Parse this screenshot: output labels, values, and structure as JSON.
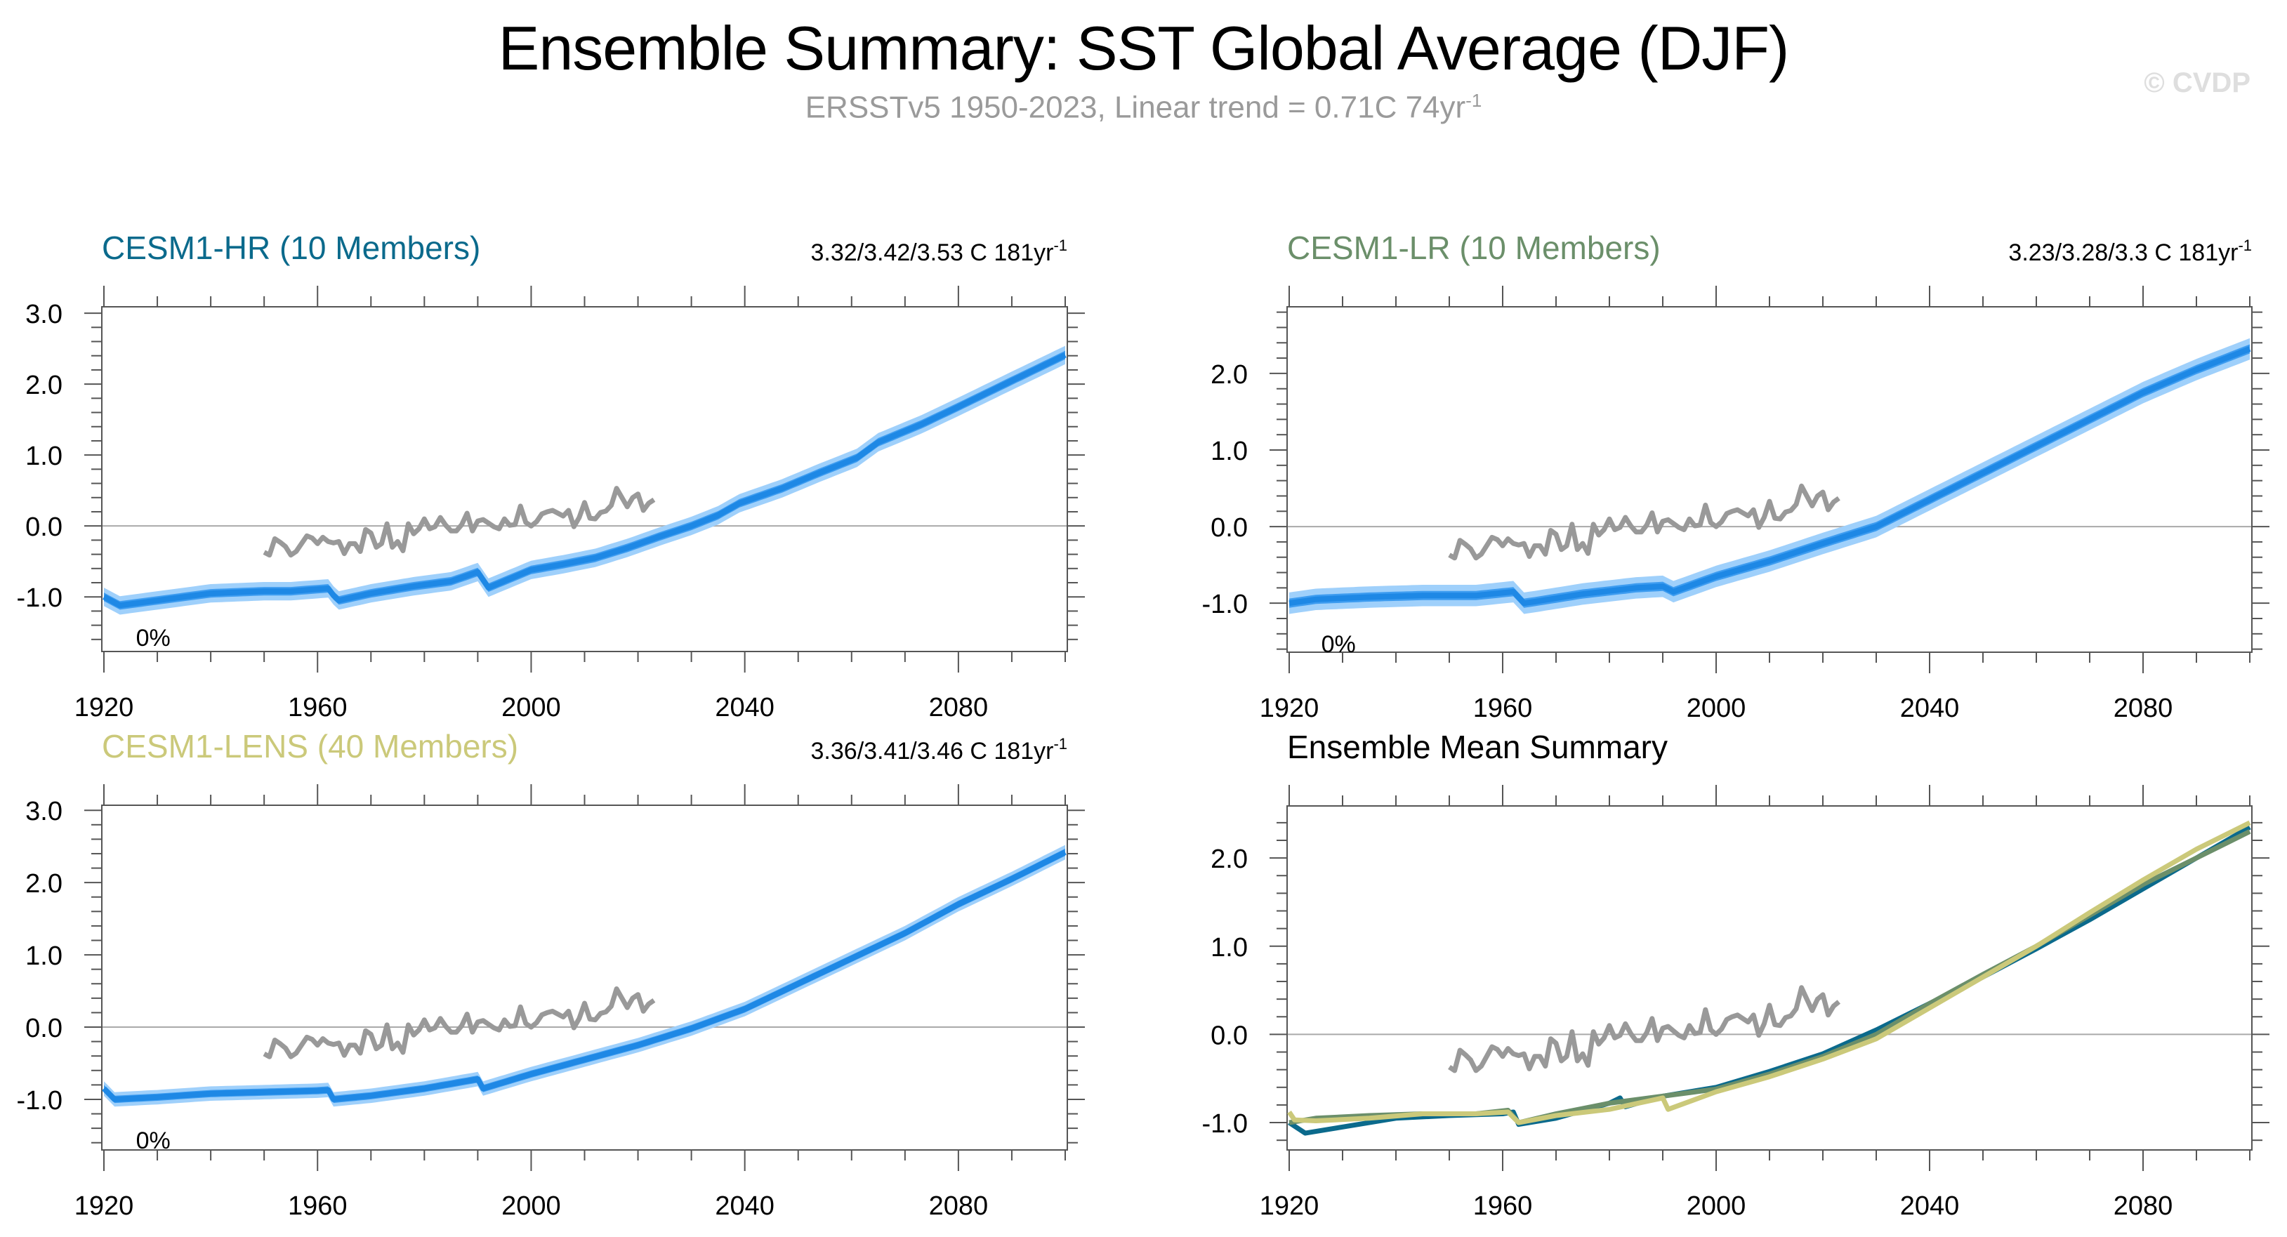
{
  "header": {
    "title": "Ensemble Summary: SST Global Average (DJF)",
    "subtitle_main": "ERSSTv5 1950-2023, Linear trend = 0.71C 74yr",
    "subtitle_sup": "-1",
    "watermark": "© CVDP"
  },
  "colors": {
    "obs": "#999999",
    "band_outer": "#9fd0fb",
    "band_inner": "#3d9cf0",
    "mean": "#1e88e5",
    "hr": "#0b6a8c",
    "lr": "#6b8f6a",
    "lens": "#cbc97a",
    "axis": "#555555",
    "zero_line": "#aaaaaa"
  },
  "chart_data": [
    {
      "id": "hr",
      "type": "area",
      "title": "CESM1-HR (10 Members)",
      "title_color": "#0b6a8c",
      "annotation": "3.32/3.42/3.53 C 181yr",
      "annotation_sup": "-1",
      "percent_label": "0%",
      "xlim": [
        1920,
        2100
      ],
      "ylim": [
        -1.77,
        3.09
      ],
      "xticks": [
        1920,
        1960,
        2000,
        2040,
        2080
      ],
      "yticks": [
        -1.0,
        0.0,
        1.0,
        2.0,
        3.0
      ],
      "ytick_labels": [
        "-1.0",
        "0.0",
        "1.0",
        "2.0",
        "3.0"
      ],
      "mean": {
        "x": [
          1920,
          1923,
          1930,
          1940,
          1950,
          1955,
          1962,
          1963,
          1964,
          1970,
          1978,
          1985,
          1990,
          1992,
          2000,
          2006,
          2012,
          2018,
          2024,
          2030,
          2035,
          2039,
          2047,
          2054,
          2061,
          2065,
          2073,
          2080,
          2089,
          2100
        ],
        "y": [
          -1.0,
          -1.12,
          -1.05,
          -0.95,
          -0.92,
          -0.92,
          -0.88,
          -0.98,
          -1.05,
          -0.95,
          -0.85,
          -0.78,
          -0.65,
          -0.87,
          -0.62,
          -0.54,
          -0.45,
          -0.31,
          -0.15,
          0.0,
          0.15,
          0.32,
          0.53,
          0.75,
          0.96,
          1.18,
          1.43,
          1.68,
          2.01,
          2.41
        ]
      },
      "inner_halfwidth": 0.06,
      "outer_halfwidth": 0.13
    },
    {
      "id": "lr",
      "type": "area",
      "title": "CESM1-LR (10 Members)",
      "title_color": "#6b8f6a",
      "annotation": "3.23/3.28/3.3 C 181yr",
      "annotation_sup": "-1",
      "percent_label": "0%",
      "xlim": [
        1920,
        2100
      ],
      "ylim": [
        -1.64,
        2.87
      ],
      "xticks": [
        1920,
        1960,
        2000,
        2040,
        2080
      ],
      "yticks": [
        -1.0,
        0.0,
        1.0,
        2.0
      ],
      "ytick_labels": [
        "-1.0",
        "0.0",
        "1.0",
        "2.0"
      ],
      "mean": {
        "x": [
          1920,
          1925,
          1935,
          1945,
          1955,
          1962,
          1964,
          1966,
          1975,
          1985,
          1990,
          1992,
          2000,
          2010,
          2020,
          2030,
          2040,
          2050,
          2060,
          2070,
          2080,
          2090,
          2100
        ],
        "y": [
          -1.0,
          -0.95,
          -0.92,
          -0.9,
          -0.9,
          -0.85,
          -1.0,
          -0.98,
          -0.88,
          -0.8,
          -0.78,
          -0.85,
          -0.65,
          -0.45,
          -0.22,
          0.0,
          0.35,
          0.7,
          1.05,
          1.4,
          1.75,
          2.05,
          2.32
        ]
      },
      "inner_halfwidth": 0.06,
      "outer_halfwidth": 0.14
    },
    {
      "id": "lens",
      "type": "area",
      "title": "CESM1-LENS (40 Members)",
      "title_color": "#cbc97a",
      "annotation": "3.36/3.41/3.46 C 181yr",
      "annotation_sup": "-1",
      "percent_label": "0%",
      "xlim": [
        1920,
        2100
      ],
      "ylim": [
        -1.7,
        3.07
      ],
      "xticks": [
        1920,
        1960,
        2000,
        2040,
        2080
      ],
      "yticks": [
        -1.0,
        0.0,
        1.0,
        2.0,
        3.0
      ],
      "ytick_labels": [
        "-1.0",
        "0.0",
        "1.0",
        "2.0",
        "3.0"
      ],
      "mean": {
        "x": [
          1920,
          1922,
          1930,
          1940,
          1950,
          1960,
          1962,
          1963,
          1970,
          1980,
          1990,
          1991,
          2000,
          2010,
          2020,
          2030,
          2040,
          2050,
          2060,
          2070,
          2080,
          2090,
          2100
        ],
        "y": [
          -0.85,
          -1.0,
          -0.97,
          -0.92,
          -0.9,
          -0.88,
          -0.87,
          -1.0,
          -0.95,
          -0.85,
          -0.72,
          -0.85,
          -0.65,
          -0.45,
          -0.25,
          -0.02,
          0.25,
          0.6,
          0.95,
          1.3,
          1.7,
          2.05,
          2.42
        ]
      },
      "inner_halfwidth": 0.05,
      "outer_halfwidth": 0.1
    },
    {
      "id": "summary",
      "type": "line",
      "title": "Ensemble Mean Summary",
      "title_color": "#000000",
      "xlim": [
        1920,
        2100
      ],
      "ylim": [
        -1.31,
        2.59
      ],
      "xticks": [
        1920,
        1960,
        2000,
        2040,
        2080
      ],
      "yticks": [
        -1.0,
        0.0,
        1.0,
        2.0
      ],
      "ytick_labels": [
        "-1.0",
        "0.0",
        "1.0",
        "2.0"
      ],
      "series": [
        {
          "name": "CESM1-HR",
          "color_key": "hr",
          "x": [
            1920,
            1923,
            1930,
            1940,
            1950,
            1960,
            1962,
            1963,
            1970,
            1980,
            1982,
            1983,
            1990,
            2000,
            2010,
            2020,
            2030,
            2040,
            2050,
            2060,
            2070,
            2080,
            2090,
            2100
          ],
          "y": [
            -1.0,
            -1.12,
            -1.05,
            -0.95,
            -0.92,
            -0.9,
            -0.88,
            -1.02,
            -0.95,
            -0.78,
            -0.72,
            -0.82,
            -0.7,
            -0.6,
            -0.42,
            -0.22,
            0.05,
            0.35,
            0.65,
            0.97,
            1.3,
            1.65,
            2.0,
            2.35
          ]
        },
        {
          "name": "CESM1-LR",
          "color_key": "lr",
          "x": [
            1920,
            1925,
            1935,
            1945,
            1955,
            1961,
            1963,
            1970,
            1980,
            1990,
            2000,
            2010,
            2020,
            2030,
            2040,
            2050,
            2060,
            2070,
            2080,
            2090,
            2100
          ],
          "y": [
            -1.0,
            -0.95,
            -0.92,
            -0.9,
            -0.9,
            -0.86,
            -1.0,
            -0.9,
            -0.78,
            -0.7,
            -0.62,
            -0.45,
            -0.25,
            0.0,
            0.35,
            0.68,
            1.0,
            1.35,
            1.7,
            2.0,
            2.3
          ]
        },
        {
          "name": "CESM1-LENS",
          "color_key": "lens",
          "x": [
            1920,
            1921,
            1925,
            1935,
            1945,
            1955,
            1961,
            1963,
            1970,
            1980,
            1990,
            1991,
            2000,
            2010,
            2020,
            2030,
            2040,
            2050,
            2060,
            2070,
            2080,
            2090,
            2100
          ],
          "y": [
            -0.88,
            -0.97,
            -0.98,
            -0.95,
            -0.9,
            -0.9,
            -0.88,
            -1.0,
            -0.92,
            -0.85,
            -0.72,
            -0.85,
            -0.65,
            -0.48,
            -0.28,
            -0.05,
            0.3,
            0.65,
            1.0,
            1.38,
            1.75,
            2.1,
            2.4
          ]
        }
      ]
    }
  ],
  "observations": {
    "name": "ERSSTv5",
    "x": [
      1950,
      1951,
      1952,
      1953,
      1954,
      1955,
      1956,
      1957,
      1958,
      1959,
      1960,
      1961,
      1962,
      1963,
      1964,
      1965,
      1966,
      1967,
      1968,
      1969,
      1970,
      1971,
      1972,
      1973,
      1974,
      1975,
      1976,
      1977,
      1978,
      1979,
      1980,
      1981,
      1982,
      1983,
      1984,
      1985,
      1986,
      1987,
      1988,
      1989,
      1990,
      1991,
      1992,
      1993,
      1994,
      1995,
      1996,
      1997,
      1998,
      1999,
      2000,
      2001,
      2002,
      2003,
      2004,
      2005,
      2006,
      2007,
      2008,
      2009,
      2010,
      2011,
      2012,
      2013,
      2014,
      2015,
      2016,
      2017,
      2018,
      2019,
      2020,
      2021,
      2022,
      2023
    ],
    "y": [
      -0.37,
      -0.41,
      -0.18,
      -0.23,
      -0.29,
      -0.41,
      -0.36,
      -0.25,
      -0.14,
      -0.17,
      -0.25,
      -0.16,
      -0.22,
      -0.24,
      -0.22,
      -0.39,
      -0.25,
      -0.25,
      -0.36,
      -0.05,
      -0.1,
      -0.3,
      -0.25,
      0.03,
      -0.3,
      -0.22,
      -0.35,
      0.03,
      -0.11,
      -0.04,
      0.1,
      -0.04,
      -0.01,
      0.12,
      0.01,
      -0.07,
      -0.07,
      0.02,
      0.18,
      -0.07,
      0.07,
      0.09,
      0.04,
      -0.01,
      -0.04,
      0.1,
      0.01,
      0.02,
      0.28,
      0.05,
      0.0,
      0.06,
      0.17,
      0.2,
      0.22,
      0.18,
      0.14,
      0.22,
      -0.01,
      0.12,
      0.33,
      0.11,
      0.1,
      0.19,
      0.21,
      0.29,
      0.53,
      0.4,
      0.27,
      0.4,
      0.45,
      0.22,
      0.32,
      0.37
    ]
  }
}
